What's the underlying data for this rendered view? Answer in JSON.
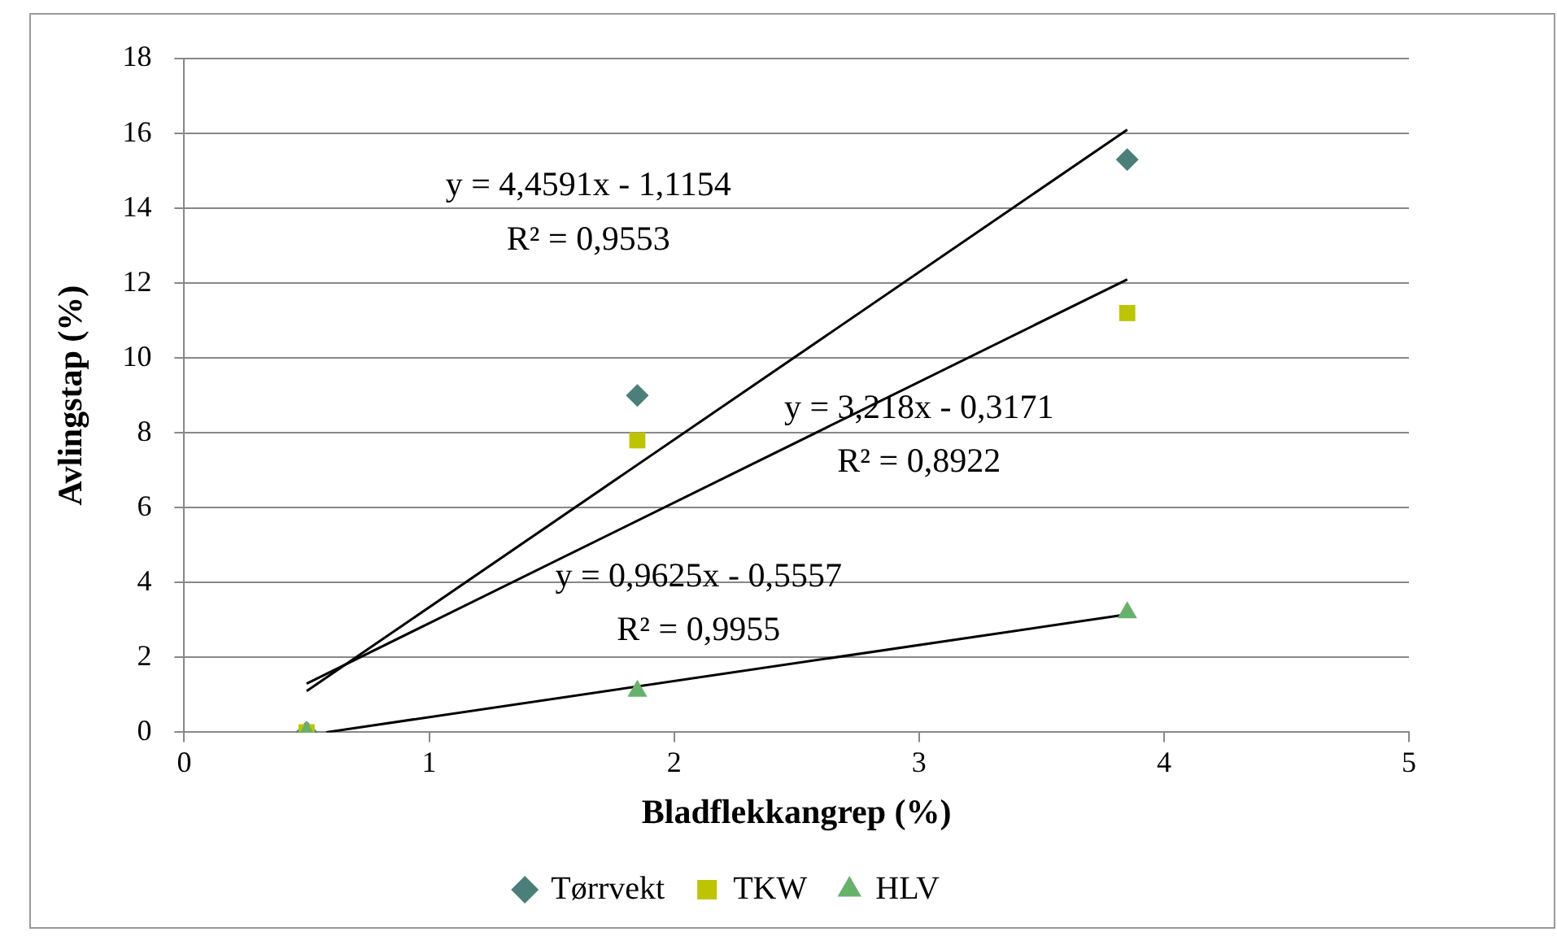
{
  "chart_data": {
    "type": "scatter",
    "xlabel": "Bladflekkangrep (%)",
    "ylabel": "Avlingstap (%)",
    "x": [
      0.5,
      1.85,
      3.85
    ],
    "series": [
      {
        "name": "Tørrvekt",
        "color": "#4a7f7a",
        "marker": "diamond",
        "values": [
          0,
          9,
          15.3
        ]
      },
      {
        "name": "TKW",
        "color": "#bcc500",
        "marker": "square",
        "values": [
          0,
          7.8,
          11.2
        ]
      },
      {
        "name": "HLV",
        "color": "#66b26b",
        "marker": "triangle",
        "values": [
          0,
          1.1,
          3.2
        ]
      },
      {
        "type": "line",
        "color": "#000000",
        "x": [
          0.5,
          3.85
        ],
        "values": [
          1.1,
          16.1
        ]
      },
      {
        "type": "line",
        "color": "#000000",
        "x": [
          0.5,
          3.85
        ],
        "values": [
          1.3,
          12.1
        ]
      },
      {
        "type": "line",
        "color": "#000000",
        "x": [
          0.58,
          3.85
        ],
        "values": [
          0,
          3.15
        ]
      }
    ],
    "annotations": [
      "y = 4,4591x - 1,1154",
      "R² = 0,9553",
      "y = 3,218x - 0,3171",
      "R² = 0,8922",
      "y = 0,9625x - 0,5557",
      "R² = 0,9955"
    ],
    "xlim": [
      0,
      5
    ],
    "xticks": [
      0,
      1,
      2,
      3,
      4,
      5
    ],
    "ylim": [
      0,
      18
    ],
    "yticks": [
      0,
      2,
      4,
      6,
      8,
      10,
      12,
      14,
      16,
      18
    ],
    "grid": "y",
    "legend": "bottom"
  }
}
